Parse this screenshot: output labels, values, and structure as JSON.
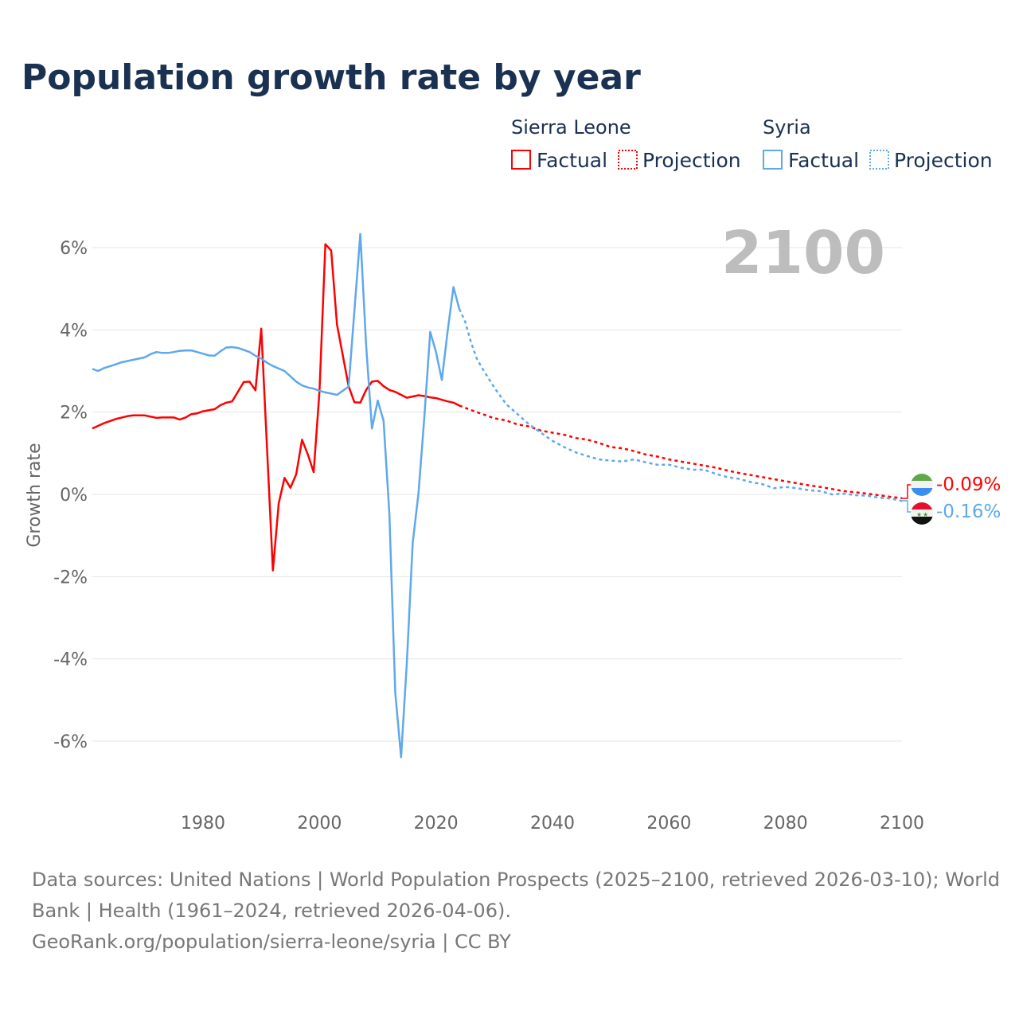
{
  "title": "Population growth rate by year",
  "current_year_label": "2100",
  "legend": {
    "groups": [
      {
        "name": "Sierra Leone",
        "factual": "Factual",
        "projection": "Projection",
        "color": "#ff0000"
      },
      {
        "name": "Syria",
        "factual": "Factual",
        "projection": "Projection",
        "color": "#5ea8ec"
      }
    ]
  },
  "end_labels": {
    "sierra_leone": "-0.09%",
    "syria": "-0.16%"
  },
  "footer": {
    "line1": "Data sources: United Nations | World Population Prospects (2025–2100, retrieved 2026-03-10); World",
    "line2": "Bank | Health (1961–2024, retrieved 2026-04-06).",
    "line3": "GeoRank.org/population/sierra-leone/syria | CC BY"
  },
  "chart_data": {
    "type": "line",
    "title": "Population growth rate by year",
    "xlabel": "",
    "ylabel": "Growth rate",
    "xlim": [
      1961,
      2100
    ],
    "ylim": [
      -6.5,
      6.4
    ],
    "x_ticks": [
      1980,
      2000,
      2020,
      2040,
      2060,
      2080,
      2100
    ],
    "y_ticks": [
      -6,
      -4,
      -2,
      0,
      2,
      4,
      6
    ],
    "y_tick_labels": [
      "-6%",
      "-4%",
      "-2%",
      "0%",
      "2%",
      "4%",
      "6%"
    ],
    "grid": true,
    "legend_position": "top-right",
    "series": [
      {
        "name": "Sierra Leone",
        "kind": "factual",
        "color": "#ff0000",
        "points": [
          [
            1961,
            1.6
          ],
          [
            1963,
            1.73
          ],
          [
            1965,
            1.83
          ],
          [
            1967,
            1.9
          ],
          [
            1968,
            1.92
          ],
          [
            1970,
            1.92
          ],
          [
            1972,
            1.86
          ],
          [
            1973,
            1.87
          ],
          [
            1975,
            1.87
          ],
          [
            1976,
            1.82
          ],
          [
            1977,
            1.87
          ],
          [
            1978,
            1.95
          ],
          [
            1979,
            1.97
          ],
          [
            1980,
            2.02
          ],
          [
            1982,
            2.07
          ],
          [
            1983,
            2.17
          ],
          [
            1984,
            2.23
          ],
          [
            1985,
            2.26
          ],
          [
            1987,
            2.73
          ],
          [
            1988,
            2.74
          ],
          [
            1989,
            2.53
          ],
          [
            1990,
            4.03
          ],
          [
            1992,
            -1.85
          ],
          [
            1993,
            -0.22
          ],
          [
            1994,
            0.4
          ],
          [
            1995,
            0.16
          ],
          [
            1996,
            0.49
          ],
          [
            1997,
            1.33
          ],
          [
            1998,
            0.97
          ],
          [
            1999,
            0.54
          ],
          [
            2000,
            2.5
          ],
          [
            2001,
            6.08
          ],
          [
            2002,
            5.93
          ],
          [
            2003,
            4.13
          ],
          [
            2004,
            3.38
          ],
          [
            2005,
            2.63
          ],
          [
            2006,
            2.24
          ],
          [
            2007,
            2.23
          ],
          [
            2008,
            2.54
          ],
          [
            2009,
            2.74
          ],
          [
            2010,
            2.76
          ],
          [
            2011,
            2.63
          ],
          [
            2012,
            2.54
          ],
          [
            2013,
            2.49
          ],
          [
            2015,
            2.35
          ],
          [
            2017,
            2.41
          ],
          [
            2018,
            2.39
          ],
          [
            2019,
            2.36
          ],
          [
            2020,
            2.34
          ],
          [
            2021,
            2.3
          ],
          [
            2022,
            2.26
          ],
          [
            2023,
            2.23
          ],
          [
            2024,
            2.16
          ]
        ]
      },
      {
        "name": "Sierra Leone",
        "kind": "projection",
        "color": "#ff0000",
        "points": [
          [
            2024,
            2.16
          ],
          [
            2026,
            2.05
          ],
          [
            2028,
            1.95
          ],
          [
            2030,
            1.85
          ],
          [
            2032,
            1.8
          ],
          [
            2034,
            1.7
          ],
          [
            2036,
            1.65
          ],
          [
            2038,
            1.55
          ],
          [
            2040,
            1.5
          ],
          [
            2042,
            1.45
          ],
          [
            2044,
            1.37
          ],
          [
            2046,
            1.33
          ],
          [
            2048,
            1.25
          ],
          [
            2050,
            1.15
          ],
          [
            2052,
            1.12
          ],
          [
            2054,
            1.05
          ],
          [
            2056,
            0.97
          ],
          [
            2058,
            0.92
          ],
          [
            2060,
            0.85
          ],
          [
            2062,
            0.8
          ],
          [
            2064,
            0.75
          ],
          [
            2066,
            0.7
          ],
          [
            2068,
            0.65
          ],
          [
            2070,
            0.58
          ],
          [
            2072,
            0.52
          ],
          [
            2074,
            0.47
          ],
          [
            2076,
            0.42
          ],
          [
            2078,
            0.37
          ],
          [
            2080,
            0.32
          ],
          [
            2082,
            0.27
          ],
          [
            2084,
            0.22
          ],
          [
            2086,
            0.18
          ],
          [
            2088,
            0.13
          ],
          [
            2090,
            0.08
          ],
          [
            2092,
            0.05
          ],
          [
            2094,
            0.02
          ],
          [
            2096,
            -0.02
          ],
          [
            2098,
            -0.06
          ],
          [
            2100,
            -0.09
          ]
        ]
      },
      {
        "name": "Syria",
        "kind": "factual",
        "color": "#5ea8ec",
        "points": [
          [
            1961,
            3.05
          ],
          [
            1962,
            3.0
          ],
          [
            1963,
            3.07
          ],
          [
            1965,
            3.16
          ],
          [
            1966,
            3.21
          ],
          [
            1968,
            3.27
          ],
          [
            1970,
            3.33
          ],
          [
            1971,
            3.41
          ],
          [
            1972,
            3.46
          ],
          [
            1973,
            3.44
          ],
          [
            1974,
            3.44
          ],
          [
            1975,
            3.46
          ],
          [
            1976,
            3.49
          ],
          [
            1977,
            3.5
          ],
          [
            1978,
            3.5
          ],
          [
            1980,
            3.42
          ],
          [
            1981,
            3.38
          ],
          [
            1982,
            3.37
          ],
          [
            1983,
            3.48
          ],
          [
            1984,
            3.57
          ],
          [
            1985,
            3.58
          ],
          [
            1986,
            3.56
          ],
          [
            1987,
            3.51
          ],
          [
            1988,
            3.46
          ],
          [
            1989,
            3.37
          ],
          [
            1990,
            3.3
          ],
          [
            1991,
            3.2
          ],
          [
            1992,
            3.12
          ],
          [
            1993,
            3.06
          ],
          [
            1994,
            3.0
          ],
          [
            1995,
            2.87
          ],
          [
            1996,
            2.74
          ],
          [
            1997,
            2.65
          ],
          [
            1998,
            2.6
          ],
          [
            1999,
            2.57
          ],
          [
            2000,
            2.52
          ],
          [
            2001,
            2.48
          ],
          [
            2002,
            2.45
          ],
          [
            2003,
            2.42
          ],
          [
            2004,
            2.52
          ],
          [
            2005,
            2.62
          ],
          [
            2006,
            4.47
          ],
          [
            2007,
            6.33
          ],
          [
            2008,
            3.63
          ],
          [
            2009,
            1.6
          ],
          [
            2010,
            2.28
          ],
          [
            2011,
            1.79
          ],
          [
            2012,
            -0.47
          ],
          [
            2013,
            -4.82
          ],
          [
            2014,
            -6.39
          ],
          [
            2015,
            -4.07
          ],
          [
            2016,
            -1.18
          ],
          [
            2017,
            0.03
          ],
          [
            2018,
            1.87
          ],
          [
            2019,
            3.95
          ],
          [
            2020,
            3.46
          ],
          [
            2021,
            2.78
          ],
          [
            2022,
            3.97
          ],
          [
            2023,
            5.04
          ],
          [
            2024,
            4.51
          ]
        ]
      },
      {
        "name": "Syria",
        "kind": "projection",
        "color": "#5ea8ec",
        "points": [
          [
            2024,
            4.51
          ],
          [
            2025,
            4.2
          ],
          [
            2026,
            3.7
          ],
          [
            2027,
            3.3
          ],
          [
            2028,
            3.05
          ],
          [
            2030,
            2.6
          ],
          [
            2032,
            2.2
          ],
          [
            2034,
            1.95
          ],
          [
            2036,
            1.7
          ],
          [
            2038,
            1.5
          ],
          [
            2040,
            1.3
          ],
          [
            2042,
            1.15
          ],
          [
            2044,
            1.02
          ],
          [
            2046,
            0.93
          ],
          [
            2048,
            0.85
          ],
          [
            2050,
            0.82
          ],
          [
            2052,
            0.8
          ],
          [
            2054,
            0.85
          ],
          [
            2056,
            0.78
          ],
          [
            2058,
            0.72
          ],
          [
            2060,
            0.72
          ],
          [
            2062,
            0.65
          ],
          [
            2064,
            0.6
          ],
          [
            2066,
            0.6
          ],
          [
            2068,
            0.5
          ],
          [
            2070,
            0.42
          ],
          [
            2072,
            0.38
          ],
          [
            2074,
            0.3
          ],
          [
            2076,
            0.25
          ],
          [
            2078,
            0.15
          ],
          [
            2080,
            0.18
          ],
          [
            2082,
            0.15
          ],
          [
            2084,
            0.1
          ],
          [
            2086,
            0.08
          ],
          [
            2088,
            0.0
          ],
          [
            2090,
            0.02
          ],
          [
            2092,
            -0.02
          ],
          [
            2094,
            -0.03
          ],
          [
            2096,
            -0.08
          ],
          [
            2098,
            -0.1
          ],
          [
            2100,
            -0.16
          ]
        ]
      }
    ]
  }
}
